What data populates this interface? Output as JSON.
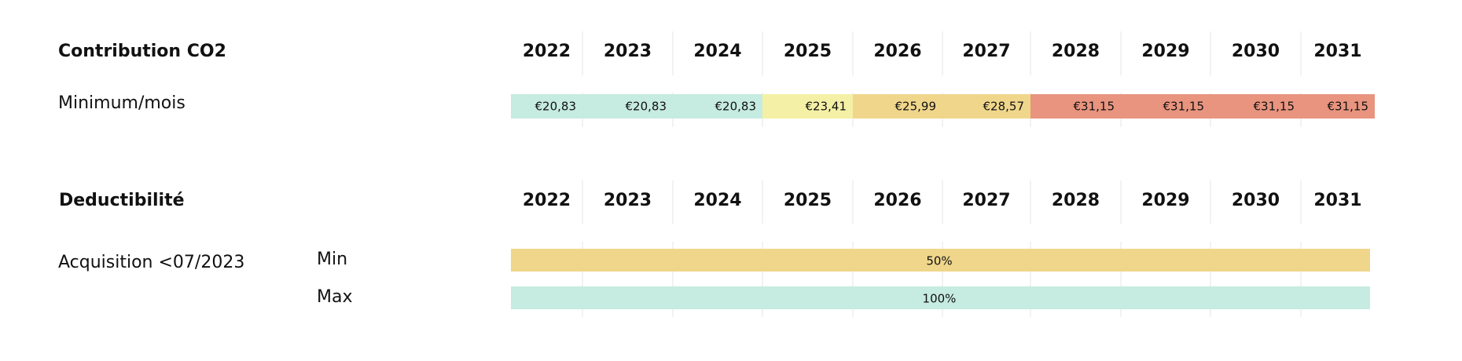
{
  "contribution": {
    "title": "Contribution CO2",
    "years": [
      "2022",
      "2023",
      "2024",
      "2025",
      "2026",
      "2027",
      "2028",
      "2029",
      "2030",
      "2031"
    ],
    "row_label": "Minimum/mois",
    "cells": [
      {
        "value": "€20,83",
        "color": "#c6ebe1"
      },
      {
        "value": "€20,83",
        "color": "#c6ebe1"
      },
      {
        "value": "€20,83",
        "color": "#c6ebe1"
      },
      {
        "value": "€23,41",
        "color": "#f4f0a6"
      },
      {
        "value": "€25,99",
        "color": "#f0d68b"
      },
      {
        "value": "€28,57",
        "color": "#f0d68b"
      },
      {
        "value": "€31,15",
        "color": "#e8947f"
      },
      {
        "value": "€31,15",
        "color": "#e8947f"
      },
      {
        "value": "€31,15",
        "color": "#e8947f"
      },
      {
        "value": "€31,15",
        "color": "#e8947f"
      }
    ]
  },
  "deductibility": {
    "title": "Deductibilité",
    "years": [
      "2022",
      "2023",
      "2024",
      "2025",
      "2026",
      "2027",
      "2028",
      "2029",
      "2030",
      "2031"
    ],
    "row_label": "Acquisition <07/2023",
    "rows": [
      {
        "label": "Min",
        "value": "50%",
        "color": "#f0d68b"
      },
      {
        "label": "Max",
        "value": "100%",
        "color": "#c6ebe1"
      }
    ]
  }
}
